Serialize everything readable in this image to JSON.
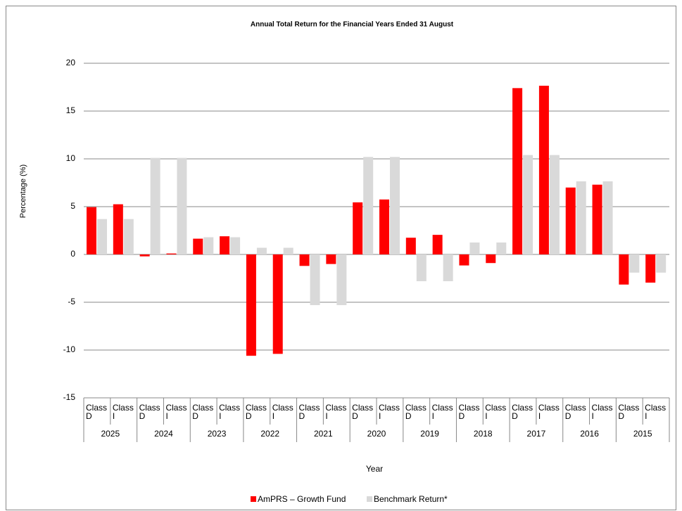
{
  "chart_data": {
    "type": "bar",
    "title": "Annual Total Return for the Financial Years Ended 31 August",
    "x_label": "Year",
    "y_label": "Percentage (%)",
    "groups": [
      "2025",
      "2024",
      "2023",
      "2022",
      "2021",
      "2020",
      "2019",
      "2018",
      "2017",
      "2016",
      "2015"
    ],
    "categories": [
      "Class D",
      "Class I",
      "Class D",
      "Class I",
      "Class D",
      "Class I",
      "Class D",
      "Class I",
      "Class D",
      "Class I",
      "Class D",
      "Class I",
      "Class D",
      "Class I",
      "Class D",
      "Class I",
      "Class D",
      "Class I",
      "Class D",
      "Class I",
      "Class D",
      "Class I"
    ],
    "series": [
      {
        "name": "AmPRS – Growth Fund",
        "color": "#ff0000",
        "values": [
          4.95,
          5.25,
          -0.2,
          0.1,
          1.65,
          1.9,
          -10.6,
          -10.4,
          -1.2,
          -1.0,
          5.45,
          5.75,
          1.75,
          2.05,
          -1.15,
          -0.9,
          17.4,
          17.65,
          7.0,
          7.3,
          -3.15,
          -2.95
        ]
      },
      {
        "name": "Benchmark Return*",
        "color": "#d9d9d9",
        "values": [
          3.7,
          3.7,
          10.1,
          10.1,
          1.8,
          1.8,
          0.7,
          0.7,
          -5.3,
          -5.3,
          10.2,
          10.2,
          -2.8,
          -2.8,
          1.25,
          1.25,
          10.4,
          10.4,
          7.65,
          7.65,
          -1.9,
          -1.9
        ]
      }
    ],
    "ylim": [
      -15,
      20
    ],
    "yticks": [
      -15,
      -10,
      -5,
      0,
      5,
      10,
      15,
      20
    ],
    "grid": true,
    "legend": "bottom"
  }
}
